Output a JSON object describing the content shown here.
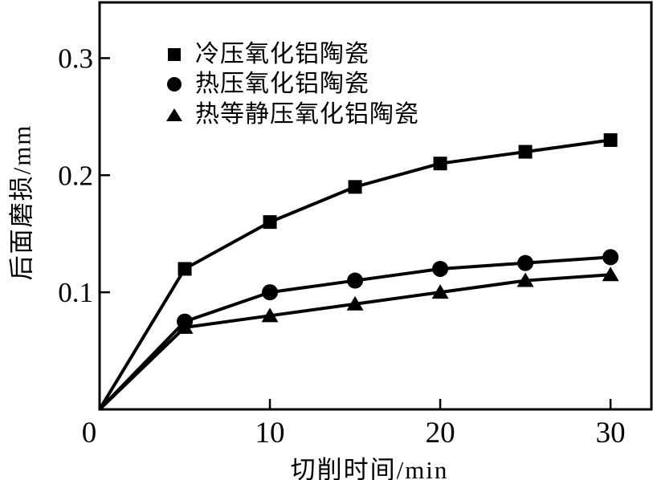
{
  "figure": {
    "background": "#ffffff",
    "line_color": "#000000"
  },
  "chart_data": {
    "type": "line",
    "title": "",
    "xlabel": "切削时间/min",
    "ylabel": "后面磨损/mm",
    "x": [
      0,
      5,
      10,
      15,
      20,
      25,
      30
    ],
    "x_ticks": [
      0,
      10,
      20,
      30
    ],
    "y_ticks": [
      0.1,
      0.2,
      0.3
    ],
    "xlim": [
      0,
      32.4
    ],
    "ylim": [
      0,
      0.3476
    ],
    "grid": false,
    "legend_position": "top-left-inside",
    "series": [
      {
        "name": "冷压氧化铝陶瓷",
        "marker": "square",
        "color": "#000000",
        "values": [
          0,
          0.12,
          0.16,
          0.19,
          0.21,
          0.22,
          0.23
        ]
      },
      {
        "name": "热压氧化铝陶瓷",
        "marker": "circle",
        "color": "#000000",
        "values": [
          0,
          0.075,
          0.1,
          0.11,
          0.12,
          0.125,
          0.13
        ]
      },
      {
        "name": "热等静压氧化铝陶瓷",
        "marker": "triangle",
        "color": "#000000",
        "values": [
          0,
          0.07,
          0.08,
          0.09,
          0.1,
          0.11,
          0.115
        ]
      }
    ]
  }
}
